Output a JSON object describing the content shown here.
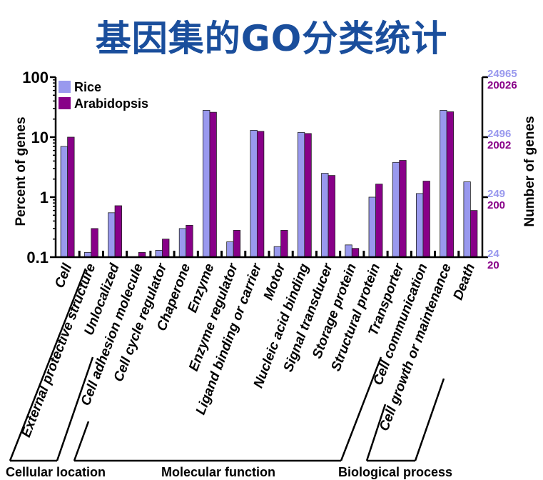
{
  "title": "基因集的GO分类统计",
  "chart_data": {
    "type": "bar",
    "title": "基因集的GO分类统计",
    "ylabel": "Percent of genes",
    "y2label": "Number of genes",
    "yscale": "log",
    "ylim": [
      0.1,
      100
    ],
    "yticks": [
      "100",
      "10",
      "1",
      "0.1"
    ],
    "y2ticks": [
      {
        "rice": "24965",
        "arabidopsis": "20026"
      },
      {
        "rice": "2496",
        "arabidopsis": "2002"
      },
      {
        "rice": "249",
        "arabidopsis": "200"
      },
      {
        "rice": "24",
        "arabidopsis": "20"
      }
    ],
    "legend_position": "top-left",
    "categories": [
      "Cell",
      "External protective structure",
      "Unlocalized",
      "Cell adhesion molecule",
      "Cell cycle regulator",
      "Chaperone",
      "Enzyme",
      "Enzyme regulator",
      "Ligand binding or carrier",
      "Motor",
      "Nucleic acid binding",
      "Signal transducer",
      "Storage protein",
      "Structural protein",
      "Transporter",
      "Cell communication",
      "Cell growth or maintenance",
      "Death"
    ],
    "series": [
      {
        "name": "Rice",
        "color": "#9999ee",
        "values": [
          7,
          0.12,
          0.55,
          0.1,
          0.13,
          0.3,
          28,
          0.18,
          13,
          0.15,
          12,
          2.5,
          0.16,
          1.0,
          3.8,
          1.15,
          28,
          1.8
        ]
      },
      {
        "name": "Arabidopsis",
        "color": "#880088",
        "values": [
          10,
          0.3,
          0.72,
          0.12,
          0.2,
          0.34,
          26,
          0.28,
          12.5,
          0.28,
          11.5,
          2.3,
          0.14,
          1.65,
          4.1,
          1.85,
          26.5,
          0.6
        ]
      }
    ],
    "groups": [
      {
        "label": "Cellular location"
      },
      {
        "label": "Molecular function"
      },
      {
        "label": "Biological process"
      }
    ]
  }
}
